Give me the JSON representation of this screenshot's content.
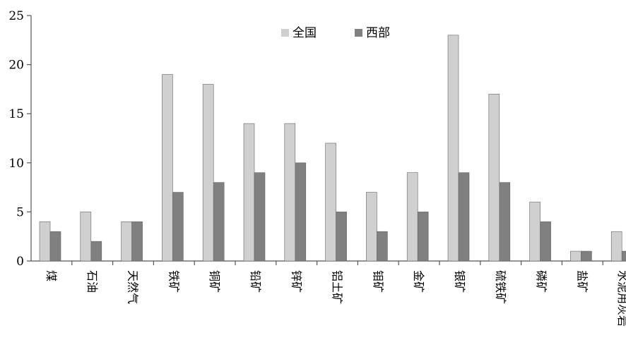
{
  "chart_data": {
    "type": "bar",
    "title": "",
    "xlabel": "",
    "ylabel": "",
    "ylim": [
      0,
      25
    ],
    "yticks": [
      0,
      5,
      10,
      15,
      20,
      25
    ],
    "grid": false,
    "legend_position": "top-center",
    "categories": [
      "煤",
      "石油",
      "天然气",
      "铁矿",
      "铜矿",
      "铅矿",
      "锌矿",
      "铝土矿",
      "钼矿",
      "金矿",
      "银矿",
      "硫铁矿",
      "磷矿",
      "盐矿",
      "水泥用灰岩"
    ],
    "series": [
      {
        "name": "全国",
        "color": "#d0d0d0",
        "values": [
          4,
          5,
          4,
          19,
          18,
          14,
          14,
          12,
          7,
          9,
          23,
          17,
          6,
          1,
          3
        ]
      },
      {
        "name": "西部",
        "color": "#808080",
        "values": [
          3,
          2,
          4,
          7,
          8,
          9,
          10,
          5,
          3,
          5,
          9,
          8,
          4,
          1,
          1
        ]
      }
    ]
  }
}
